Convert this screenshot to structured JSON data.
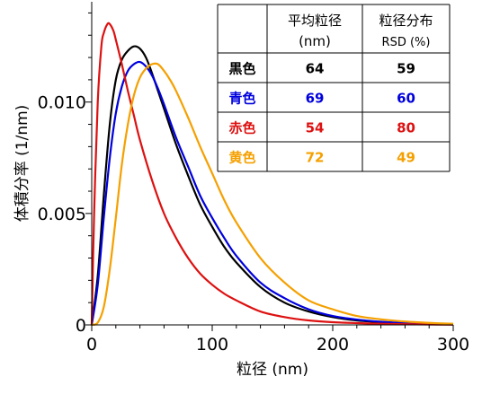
{
  "chart_data": {
    "type": "line",
    "xlabel": "粒径 (nm)",
    "ylabel": "体積分率 (1/nm)",
    "xlim": [
      0,
      300
    ],
    "ylim": [
      0,
      0.0145
    ],
    "x_ticks": [
      "0",
      "100",
      "200",
      "300"
    ],
    "y_ticks": [
      "0",
      "0.005",
      "0.010"
    ],
    "grid": false,
    "series": [
      {
        "name": "黒色",
        "color": "#000000",
        "x": [
          0,
          5,
          10,
          15,
          20,
          25,
          30,
          35,
          40,
          45,
          50,
          55,
          60,
          70,
          80,
          90,
          100,
          110,
          120,
          140,
          160,
          180,
          200,
          220,
          240,
          260,
          280,
          300
        ],
        "y": [
          0,
          0.0022,
          0.0058,
          0.009,
          0.011,
          0.0119,
          0.0123,
          0.0125,
          0.0124,
          0.012,
          0.0113,
          0.0105,
          0.0097,
          0.0081,
          0.0067,
          0.0054,
          0.0044,
          0.0035,
          0.0028,
          0.0017,
          0.001,
          0.0006,
          0.00035,
          0.0002,
          0.00012,
          7e-05,
          4e-05,
          2e-05
        ]
      },
      {
        "name": "青色",
        "color": "#0000dd",
        "x": [
          0,
          5,
          10,
          15,
          20,
          25,
          30,
          35,
          40,
          45,
          50,
          55,
          60,
          70,
          80,
          90,
          100,
          110,
          120,
          140,
          160,
          180,
          200,
          220,
          240,
          260,
          280,
          300
        ],
        "y": [
          0,
          0.0018,
          0.0048,
          0.0075,
          0.0095,
          0.0107,
          0.0114,
          0.0117,
          0.0118,
          0.0116,
          0.0112,
          0.0106,
          0.0099,
          0.0084,
          0.0071,
          0.0058,
          0.0048,
          0.0039,
          0.0031,
          0.0019,
          0.0012,
          0.0007,
          0.0004,
          0.00024,
          0.00014,
          8e-05,
          5e-05,
          3e-05
        ]
      },
      {
        "name": "赤色",
        "color": "#dd1111",
        "x": [
          0,
          2,
          5,
          8,
          10,
          13,
          15,
          18,
          20,
          25,
          30,
          35,
          40,
          50,
          60,
          70,
          80,
          90,
          100,
          110,
          120,
          140,
          160,
          180,
          200,
          220,
          240,
          260,
          280,
          300
        ],
        "y": [
          0,
          0.005,
          0.01,
          0.0125,
          0.0131,
          0.0135,
          0.0135,
          0.0132,
          0.0128,
          0.0117,
          0.0105,
          0.0094,
          0.0083,
          0.0065,
          0.005,
          0.0039,
          0.003,
          0.0023,
          0.0018,
          0.0014,
          0.0011,
          0.0006,
          0.00035,
          0.0002,
          0.00012,
          8e-05,
          5e-05,
          3e-05,
          2e-05,
          1e-05
        ]
      },
      {
        "name": "黄色",
        "color": "#f5a000",
        "x": [
          0,
          5,
          10,
          15,
          20,
          25,
          30,
          35,
          40,
          45,
          50,
          55,
          60,
          65,
          70,
          80,
          90,
          100,
          110,
          120,
          140,
          160,
          180,
          200,
          220,
          240,
          260,
          280,
          300
        ],
        "y": [
          0,
          0.0001,
          0.0008,
          0.0025,
          0.0048,
          0.0072,
          0.009,
          0.0103,
          0.0111,
          0.0115,
          0.0117,
          0.0117,
          0.0114,
          0.011,
          0.0105,
          0.0093,
          0.008,
          0.0068,
          0.0056,
          0.0046,
          0.003,
          0.0019,
          0.0011,
          0.0007,
          0.0004,
          0.00025,
          0.00015,
          9e-05,
          5e-05
        ]
      }
    ],
    "table": {
      "headers": [
        [
          "",
          ""
        ],
        [
          "平均粒径",
          "(nm)"
        ],
        [
          "粒径分布",
          "RSD (%)"
        ]
      ],
      "rows": [
        {
          "label": "黒色",
          "mean": "64",
          "rsd": "59",
          "color": "#000000"
        },
        {
          "label": "青色",
          "mean": "69",
          "rsd": "60",
          "color": "#0000dd"
        },
        {
          "label": "赤色",
          "mean": "54",
          "rsd": "80",
          "color": "#dd1111"
        },
        {
          "label": "黄色",
          "mean": "72",
          "rsd": "49",
          "color": "#f5a000"
        }
      ]
    }
  }
}
